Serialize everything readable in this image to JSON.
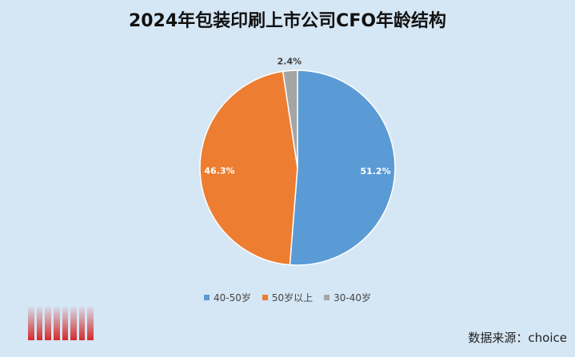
{
  "title": "2024年包装印刷上市公司CFO年龄结构",
  "source": "数据来源：choice",
  "chart_data": {
    "type": "pie",
    "title": "2024年包装印刷上市公司CFO年龄结构",
    "slices": [
      {
        "label": "40-50岁",
        "value": 51.2,
        "display": "51.2%",
        "color": "#5b9bd5",
        "label_color": "#ffffff"
      },
      {
        "label": "50岁以上",
        "value": 46.3,
        "display": "46.3%",
        "color": "#ed7d31",
        "label_color": "#ffffff"
      },
      {
        "label": "30-40岁",
        "value": 2.4,
        "display": "2.4%",
        "color": "#a5a5a5",
        "label_color": "#404040"
      }
    ],
    "legend_position": "bottom"
  }
}
